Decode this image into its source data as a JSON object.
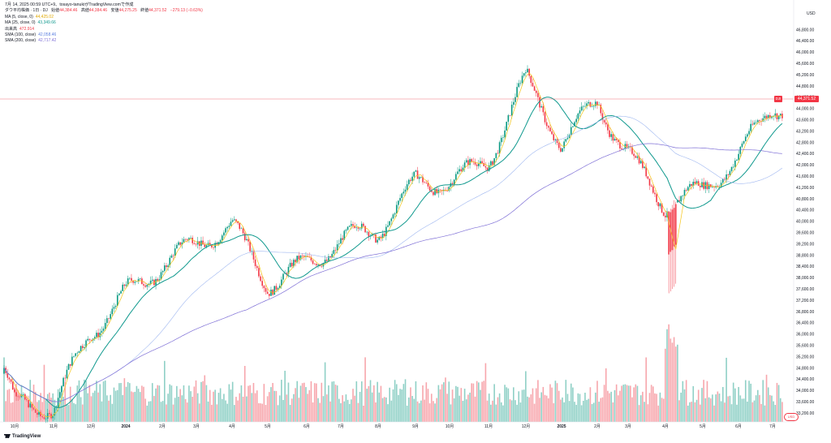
{
  "header": {
    "timestamp": "7月 14, 2025 00:59 UTC+9、tosayo-tanukiがTradingView.comで作成"
  },
  "legend": {
    "symbol": "ダウ平均株価 · 1日 · DJ",
    "open_label": "始値",
    "open": "44,384.46",
    "high_label": "高値",
    "high": "44,384.46",
    "low_label": "安値",
    "low": "44,275.25",
    "close_label": "終値",
    "close": "44,371.52",
    "change": "−279.13 (−0.63%)",
    "ma5_label": "MA (5, close, 0)",
    "ma5": "44,425.02",
    "ma25_label": "MA (25, close, 0)",
    "ma25": "43,349.66",
    "volume_label": "出来高",
    "volume": "472.914",
    "sma100_label": "SMA (100, close)",
    "sma100": "42,058.46",
    "sma200_label": "SMA (200, close)",
    "sma200": "42,717.42"
  },
  "price_axis": {
    "currency": "USD",
    "current_price": "44,371.52",
    "tag": "DJI",
    "ticks": [
      "46,800.00",
      "46,400.00",
      "46,000.00",
      "45,600.00",
      "45,200.00",
      "44,800.00",
      "44,400.00",
      "44,000.00",
      "43,600.00",
      "43,200.00",
      "42,800.00",
      "42,400.00",
      "42,000.00",
      "41,600.00",
      "41,200.00",
      "40,800.00",
      "40,400.00",
      "40,000.00",
      "39,600.00",
      "39,200.00",
      "38,800.00",
      "38,400.00",
      "38,000.00",
      "37,600.00",
      "37,200.00",
      "36,800.00",
      "36,400.00",
      "36,000.00",
      "35,600.00",
      "35,200.00",
      "34,800.00",
      "34,400.00",
      "34,000.00",
      "33,600.00",
      "33,200.00"
    ]
  },
  "time_axis": {
    "ticks": [
      "10月",
      "11月",
      "12月",
      "2024",
      "2月",
      "3月",
      "4月",
      "5月",
      "6月",
      "7月",
      "8月",
      "9月",
      "10月",
      "11月",
      "12月",
      "2025",
      "2月",
      "3月",
      "4月",
      "5月",
      "6月",
      "7月"
    ]
  },
  "footer": {
    "brand": "TradingView",
    "currency_button": "USD"
  },
  "colors": {
    "up": "#089981",
    "down": "#f23645",
    "ma5": "#f5c518",
    "ma25": "#10998e",
    "sma100": "#9fb7f0",
    "sma200": "#7e6fd6",
    "vol_up": "#8fd0c6",
    "vol_down": "#f7a6ac",
    "price_line": "#f23645"
  },
  "chart_data": {
    "type": "line",
    "title": "ダウ平均株価 · 1日 · DJ",
    "ylabel": "USD",
    "ylim": [
      33200,
      47000
    ],
    "x": [
      "2023-10",
      "2023-11",
      "2023-12",
      "2024-01",
      "2024-02",
      "2024-03",
      "2024-04",
      "2024-05",
      "2024-06",
      "2024-07",
      "2024-08",
      "2024-09",
      "2024-10",
      "2024-11",
      "2024-12",
      "2025-01",
      "2025-02",
      "2025-03",
      "2025-04",
      "2025-05",
      "2025-06",
      "2025-07"
    ],
    "series": [
      {
        "name": "Close",
        "values": [
          33400,
          33100,
          36200,
          37700,
          38500,
          38950,
          39700,
          38000,
          38700,
          39200,
          39400,
          41400,
          41700,
          42200,
          44800,
          42600,
          44500,
          42600,
          40500,
          40800,
          42300,
          44371.52
        ]
      }
    ],
    "last": {
      "open": 44384.46,
      "high": 44384.46,
      "low": 44275.25,
      "close": 44371.52,
      "change": -279.13,
      "change_pct": -0.63
    },
    "indicators": {
      "ma5": 44425.02,
      "ma25": 43349.66,
      "sma100": 42058.46,
      "sma200": 42717.42,
      "volume": 472.914
    },
    "grid": false,
    "legend": "top-left"
  }
}
